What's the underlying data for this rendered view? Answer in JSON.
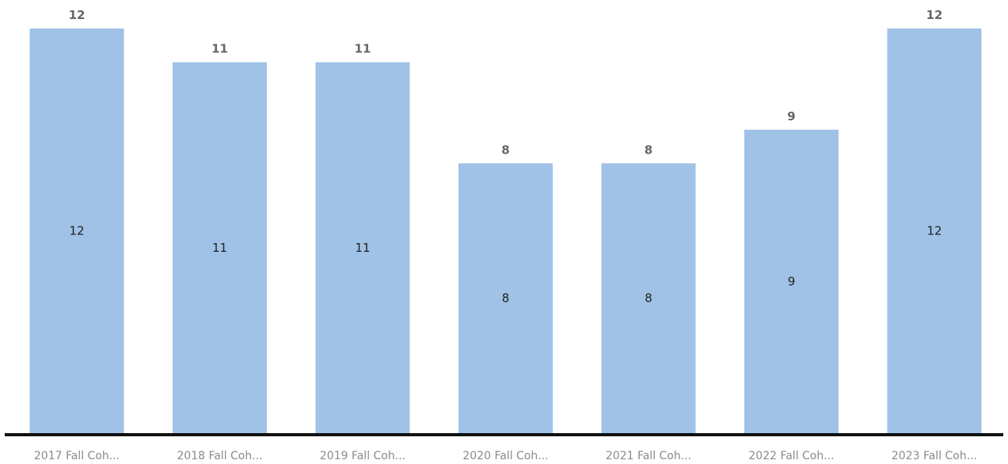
{
  "chart_data": {
    "type": "bar",
    "categories": [
      "2017 Fall Coh...",
      "2018 Fall Coh...",
      "2019 Fall Coh...",
      "2020 Fall Coh...",
      "2021 Fall Coh...",
      "2022 Fall Coh...",
      "2023 Fall Coh..."
    ],
    "values": [
      12,
      11,
      11,
      8,
      8,
      9,
      12
    ],
    "total_labels": [
      "12",
      "11",
      "11",
      "8",
      "8",
      "9",
      "12"
    ],
    "inner_labels": [
      "12",
      "11",
      "11",
      "8",
      "8",
      "9",
      "12"
    ],
    "ylim": [
      0,
      12
    ],
    "grid": false,
    "colors": {
      "bar": "#9fc2e6",
      "axis": "#111111"
    }
  }
}
